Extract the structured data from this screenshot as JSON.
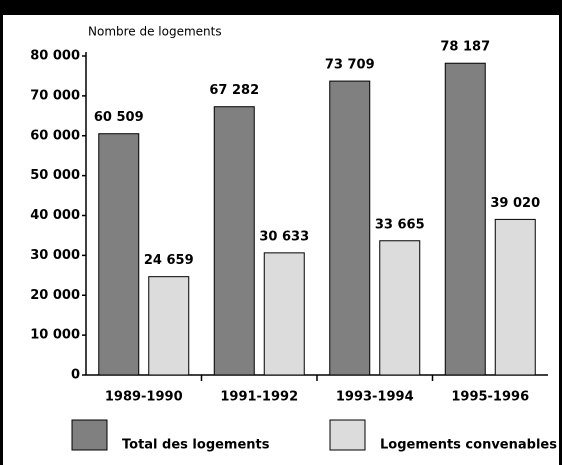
{
  "chart_data": {
    "type": "bar",
    "y_label": "Nombre de logements",
    "categories": [
      "1989-1990",
      "1991-1992",
      "1993-1994",
      "1995-1996"
    ],
    "series": [
      {
        "name": "Total des logements",
        "color": "#808080",
        "values": [
          60509,
          67282,
          73709,
          78187
        ],
        "value_labels": [
          "60 509",
          "67 282",
          "73 709",
          "78 187"
        ]
      },
      {
        "name": "Logements convenables",
        "color": "#dcdcdc",
        "values": [
          24659,
          30633,
          33665,
          39020
        ],
        "value_labels": [
          "24 659",
          "30 633",
          "33 665",
          "39 020"
        ]
      }
    ],
    "ylim": [
      0,
      80000
    ],
    "yticks": [
      0,
      {
        "value": 10000,
        "label": "10 000"
      },
      {
        "value": 20000,
        "label": "20 000"
      },
      {
        "value": 30000,
        "label": "30 000"
      },
      {
        "value": 40000,
        "label": "40 000"
      },
      {
        "value": 50000,
        "label": "50 000"
      },
      {
        "value": 60000,
        "label": "60 000"
      },
      {
        "value": 70000,
        "label": "70 000"
      },
      {
        "value": 80000,
        "label": "80 000"
      }
    ]
  }
}
